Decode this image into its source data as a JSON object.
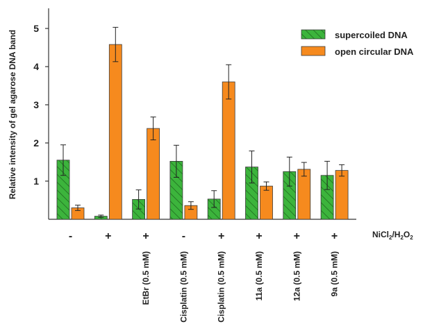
{
  "chart_data": {
    "type": "bar",
    "title": "",
    "xlabel": "",
    "ylabel": "Relative intensity of gel agarose DNA band",
    "ylim": [
      0,
      5.5
    ],
    "yticks": [
      "1",
      "2",
      "3",
      "4",
      "5"
    ],
    "grid": false,
    "legend_position": "top-right",
    "row_label": {
      "base": "NiCl",
      "sub1": "2",
      "mid": "/H",
      "sub2": "2",
      "end": "O",
      "sub3": "2"
    },
    "categories": [
      "-",
      "+",
      "+",
      "-",
      "+",
      "+",
      "+",
      "+"
    ],
    "treatments": [
      "",
      "",
      "EtBr (0.5 mM)",
      "Cisplatin (0.5 mM)",
      "Cisplatin (0.5 mM)",
      "11a (0.5 mM)",
      "12a (0.5 mM)",
      "9a (0.5 mM)"
    ],
    "series": [
      {
        "name": "supercoiled DNA",
        "color": "#3cb43c",
        "pattern": "hatch",
        "values": [
          1.55,
          0.08,
          0.52,
          1.52,
          0.53,
          1.37,
          1.25,
          1.15
        ],
        "errors": [
          0.4,
          0.03,
          0.25,
          0.42,
          0.22,
          0.42,
          0.38,
          0.37
        ]
      },
      {
        "name": "open circular DNA",
        "color": "#f68a1e",
        "pattern": "solid",
        "values": [
          0.3,
          4.58,
          2.38,
          0.36,
          3.6,
          0.87,
          1.31,
          1.28
        ],
        "errors": [
          0.07,
          0.45,
          0.3,
          0.1,
          0.45,
          0.11,
          0.18,
          0.15
        ]
      }
    ]
  }
}
